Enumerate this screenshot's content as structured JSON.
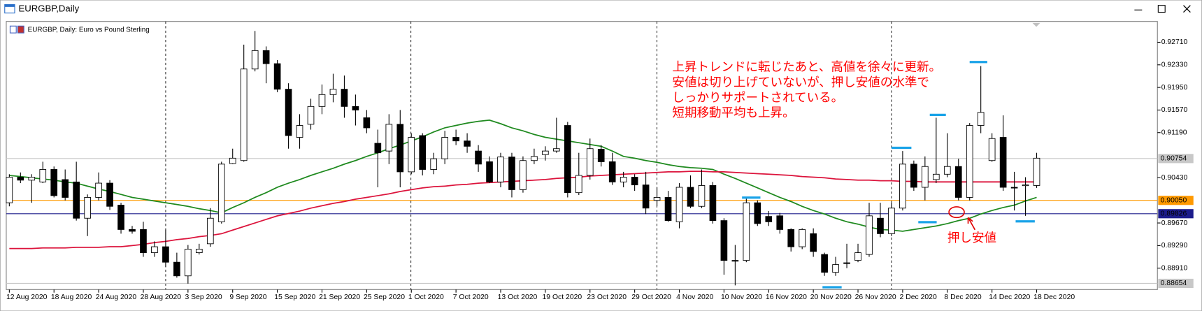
{
  "window_title": "EURGBP,Daily",
  "chart_data": {
    "type": "candlestick",
    "subtitle": "EURGBP, Daily:  Euro vs Pound Sterling",
    "categories": [
      "12 Aug 2020",
      null,
      null,
      null,
      "18 Aug 2020",
      null,
      null,
      null,
      "24 Aug 2020",
      null,
      null,
      null,
      "28 Aug 2020",
      null,
      null,
      null,
      "3 Sep 2020",
      null,
      null,
      null,
      "9 Sep 2020",
      null,
      null,
      null,
      "15 Sep 2020",
      null,
      null,
      null,
      "21 Sep 2020",
      null,
      null,
      null,
      "25 Sep 2020",
      null,
      null,
      null,
      "1 Oct 2020",
      null,
      null,
      null,
      "7 Oct 2020",
      null,
      null,
      null,
      "13 Oct 2020",
      null,
      null,
      null,
      "19 Oct 2020",
      null,
      null,
      null,
      "23 Oct 2020",
      null,
      null,
      null,
      "29 Oct 2020",
      null,
      null,
      null,
      "4 Nov 2020",
      null,
      null,
      null,
      "10 Nov 2020",
      null,
      null,
      null,
      "16 Nov 2020",
      null,
      null,
      null,
      "20 Nov 2020",
      null,
      null,
      null,
      "26 Nov 2020",
      null,
      null,
      null,
      "2 Dec 2020",
      null,
      null,
      null,
      "8 Dec 2020",
      null,
      null,
      null,
      "14 Dec 2020",
      null,
      null,
      null,
      "18 Dec 2020"
    ],
    "open": [
      0.9001,
      0.9044,
      0.9039,
      0.9036,
      0.9057,
      0.904,
      0.9036,
      0.8975,
      0.901,
      0.9034,
      0.8997,
      0.8956,
      0.8956,
      0.8917,
      0.8927,
      0.8901,
      0.8878,
      0.8917,
      0.8932,
      0.8969,
      0.9067,
      0.9072,
      0.9226,
      0.9257,
      0.9235,
      0.9192,
      0.9111,
      0.9133,
      0.9163,
      0.9183,
      0.9192,
      0.9163,
      0.9144,
      0.9101,
      0.9088,
      0.9133,
      0.9053,
      0.9114,
      0.9057,
      0.9075,
      0.9111,
      0.9105,
      0.9088,
      0.907,
      0.9036,
      0.9078,
      0.9023,
      0.9072,
      0.9082,
      0.9088,
      0.9131,
      0.9018,
      0.9047,
      0.9091,
      0.907,
      0.9036,
      0.9044,
      0.9031,
      0.9005,
      0.901,
      0.8969,
      0.9027,
      0.8995,
      0.903,
      0.8971,
      0.8904,
      0.8904,
      0.9001,
      0.8978,
      0.8979,
      0.8956,
      0.8927,
      0.8949,
      0.8914,
      0.8884,
      0.89,
      0.8904,
      0.8914,
      0.8975,
      0.8949,
      0.8992,
      0.9066,
      0.9027,
      0.904,
      0.9049,
      0.9062,
      0.901,
      0.9131,
      0.9072,
      0.9111,
      0.9027,
      0.903,
      0.903
    ],
    "high": [
      0.9049,
      0.9052,
      0.9049,
      0.907,
      0.9062,
      0.9057,
      0.907,
      0.9015,
      0.9052,
      0.9039,
      0.9001,
      0.8962,
      0.8969,
      0.8936,
      0.8956,
      0.8917,
      0.893,
      0.8932,
      0.8992,
      0.907,
      0.9092,
      0.9267,
      0.929,
      0.9264,
      0.9241,
      0.9202,
      0.915,
      0.9176,
      0.92,
      0.9218,
      0.9215,
      0.9183,
      0.9157,
      0.9124,
      0.915,
      0.9157,
      0.9118,
      0.9118,
      0.9085,
      0.9122,
      0.9124,
      0.9118,
      0.9098,
      0.9079,
      0.9085,
      0.9085,
      0.9079,
      0.9092,
      0.9096,
      0.9144,
      0.9137,
      0.9085,
      0.9109,
      0.9098,
      0.9085,
      0.9053,
      0.9049,
      0.9053,
      0.9027,
      0.9021,
      0.9034,
      0.9047,
      0.9057,
      0.9036,
      0.8975,
      0.893,
      0.9008,
      0.9005,
      0.8987,
      0.8984,
      0.8958,
      0.8958,
      0.8958,
      0.8917,
      0.891,
      0.8932,
      0.8932,
      0.9001,
      0.9001,
      0.9001,
      0.9088,
      0.9072,
      0.9079,
      0.9144,
      0.9118,
      0.9075,
      0.9135,
      0.9231,
      0.9118,
      0.9148,
      0.9053,
      0.9044,
      0.9085
    ],
    "low": [
      0.8995,
      0.9034,
      0.9001,
      0.9034,
      0.901,
      0.9005,
      0.8971,
      0.8945,
      0.9005,
      0.8989,
      0.8949,
      0.8949,
      0.891,
      0.891,
      0.8893,
      0.8875,
      0.8865,
      0.8914,
      0.8927,
      0.8966,
      0.9066,
      0.907,
      0.9222,
      0.9202,
      0.9187,
      0.9092,
      0.9092,
      0.9124,
      0.915,
      0.917,
      0.9144,
      0.9131,
      0.9118,
      0.9027,
      0.9066,
      0.9027,
      0.9049,
      0.9047,
      0.9049,
      0.9066,
      0.9098,
      0.9085,
      0.9053,
      0.9034,
      0.9027,
      0.901,
      0.9018,
      0.9066,
      0.9072,
      0.9085,
      0.901,
      0.9014,
      0.904,
      0.9062,
      0.9031,
      0.9027,
      0.9021,
      0.8982,
      0.8995,
      0.8969,
      0.8958,
      0.8992,
      0.8992,
      0.8966,
      0.888,
      0.8862,
      0.8901,
      0.8962,
      0.8962,
      0.8949,
      0.8919,
      0.8923,
      0.891,
      0.8878,
      0.8878,
      0.8891,
      0.8901,
      0.891,
      0.8943,
      0.8945,
      0.8988,
      0.9021,
      0.9005,
      0.9034,
      0.9044,
      0.9005,
      0.9005,
      0.9118,
      0.907,
      0.9021,
      0.8988,
      0.8979,
      0.9026
    ],
    "close": [
      0.9044,
      0.9039,
      0.9044,
      0.9057,
      0.9013,
      0.901,
      0.8975,
      0.901,
      0.9034,
      0.8995,
      0.8956,
      0.8953,
      0.8917,
      0.8927,
      0.8901,
      0.8878,
      0.8923,
      0.8923,
      0.8975,
      0.9066,
      0.9076,
      0.9226,
      0.9257,
      0.9235,
      0.9192,
      0.9114,
      0.9131,
      0.9163,
      0.9183,
      0.9192,
      0.9163,
      0.9157,
      0.9127,
      0.9085,
      0.9133,
      0.9053,
      0.9111,
      0.9057,
      0.9075,
      0.9111,
      0.9105,
      0.9096,
      0.9066,
      0.9036,
      0.9078,
      0.9023,
      0.9072,
      0.9079,
      0.9088,
      0.9092,
      0.9018,
      0.9047,
      0.9092,
      0.907,
      0.9036,
      0.9044,
      0.9031,
      0.8992,
      0.901,
      0.8971,
      0.9027,
      0.8995,
      0.903,
      0.8971,
      0.8904,
      0.8903,
      0.9001,
      0.8966,
      0.8969,
      0.8956,
      0.8927,
      0.8956,
      0.8919,
      0.8884,
      0.8897,
      0.8899,
      0.8917,
      0.8979,
      0.8949,
      0.8992,
      0.9066,
      0.9027,
      0.9062,
      0.9049,
      0.9062,
      0.901,
      0.9131,
      0.9153,
      0.9109,
      0.9027,
      0.9026,
      0.9031,
      0.9076
    ],
    "up_color": "#ffffff",
    "down_color": "#000000",
    "edge_color": "#000000",
    "lines": [
      {
        "color": "#1f8a1f",
        "values": [
          0.9047,
          0.9045,
          0.9043,
          0.9041,
          0.9039,
          0.9036,
          0.9034,
          0.9029,
          0.9024,
          0.902,
          0.9015,
          0.901,
          0.9007,
          0.9004,
          0.9001,
          0.8998,
          0.8995,
          0.8991,
          0.8988,
          0.8984,
          0.8993,
          0.9001,
          0.901,
          0.9018,
          0.9027,
          0.9034,
          0.904,
          0.9047,
          0.9053,
          0.9059,
          0.9066,
          0.9072,
          0.9079,
          0.9085,
          0.9092,
          0.9098,
          0.9105,
          0.9112,
          0.912,
          0.9127,
          0.9131,
          0.9135,
          0.9138,
          0.914,
          0.9134,
          0.9127,
          0.9122,
          0.9116,
          0.9111,
          0.9108,
          0.9105,
          0.9102,
          0.9099,
          0.9096,
          0.9088,
          0.9079,
          0.9076,
          0.9072,
          0.9069,
          0.9065,
          0.9062,
          0.906,
          0.9059,
          0.9057,
          0.9049,
          0.9042,
          0.9034,
          0.9026,
          0.9018,
          0.901,
          0.9003,
          0.8995,
          0.8988,
          0.8982,
          0.8975,
          0.8969,
          0.8965,
          0.896,
          0.8956,
          0.8955,
          0.8953,
          0.8956,
          0.8959,
          0.8962,
          0.8966,
          0.8971,
          0.8975,
          0.8982,
          0.8988,
          0.8993,
          0.8997,
          0.9004,
          0.901
        ]
      },
      {
        "color": "#dc143c",
        "values": [
          0.8924,
          0.8924,
          0.8924,
          0.8925,
          0.8925,
          0.8925,
          0.8926,
          0.8926,
          0.8926,
          0.8927,
          0.8927,
          0.8929,
          0.8931,
          0.8934,
          0.8936,
          0.8939,
          0.8941,
          0.8944,
          0.8946,
          0.8949,
          0.8955,
          0.8961,
          0.8967,
          0.8973,
          0.8979,
          0.8983,
          0.8987,
          0.8992,
          0.8996,
          0.9,
          0.9003,
          0.9007,
          0.901,
          0.9013,
          0.9016,
          0.902,
          0.9023,
          0.9026,
          0.9028,
          0.9029,
          0.9031,
          0.9032,
          0.9034,
          0.9035,
          0.9036,
          0.9037,
          0.9038,
          0.9039,
          0.904,
          0.9042,
          0.9043,
          0.9044,
          0.9046,
          0.9047,
          0.9048,
          0.9049,
          0.905,
          0.9051,
          0.9052,
          0.9053,
          0.9053,
          0.9054,
          0.9054,
          0.9053,
          0.9053,
          0.9052,
          0.9051,
          0.905,
          0.9049,
          0.9048,
          0.9047,
          0.9045,
          0.9044,
          0.9043,
          0.9041,
          0.904,
          0.9039,
          0.9039,
          0.9038,
          0.9038,
          0.9037,
          0.9037,
          0.9036,
          0.9036,
          0.9036,
          0.9036,
          0.9036,
          0.9036,
          0.9036,
          0.9036,
          0.9036,
          0.9036,
          0.9036
        ]
      }
    ],
    "ylim": [
      0.8855,
      0.9306
    ],
    "yticks": [
      {
        "value": 0.9271,
        "label": "0.92710"
      },
      {
        "value": 0.9233,
        "label": "0.92330"
      },
      {
        "value": 0.9195,
        "label": "0.91950"
      },
      {
        "value": 0.9157,
        "label": "0.91570"
      },
      {
        "value": 0.9119,
        "label": "0.91190"
      },
      {
        "value": 0.9043,
        "label": "0.90430"
      },
      {
        "value": 0.8967,
        "label": "0.89670"
      },
      {
        "value": 0.8929,
        "label": "0.89290"
      },
      {
        "value": 0.8891,
        "label": "0.88910"
      }
    ],
    "hlines": [
      {
        "value": 0.90754,
        "label": "0.90754",
        "color": "#c8c8c8",
        "text_color": "#ffffff"
      },
      {
        "value": 0.9005,
        "label": "0.90050",
        "color": "#ff9900",
        "text_color": "#000000"
      },
      {
        "value": 0.89826,
        "label": "0.89826",
        "color": "#1c1c8c",
        "text_color": "#ffffff"
      },
      {
        "value": 0.88654,
        "label": "0.88654",
        "color": "#c8c8c8",
        "text_color": "#000000"
      }
    ],
    "annotation": [
      "上昇トレンドに転じたあと、高値を徐々に更新。",
      "安値は切り上げていないが、押し安値の水準で",
      "しっかりサポートされている。",
      "短期移動平均も上昇。"
    ],
    "callout": "押し安値"
  }
}
